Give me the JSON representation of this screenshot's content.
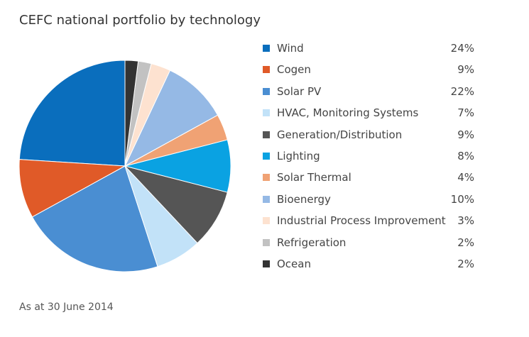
{
  "chart_data": {
    "type": "pie",
    "title": "CEFC national portfolio by technology",
    "footnote": "As at 30 June 2014",
    "legend_placement": "right",
    "start": "top, counterclockwise",
    "slices": [
      {
        "label": "Wind",
        "value": 24,
        "display": "24%",
        "color": "#0a6ebd"
      },
      {
        "label": "Cogen",
        "value": 9,
        "display": "9%",
        "color": "#e05a28"
      },
      {
        "label": "Solar PV",
        "value": 22,
        "display": "22%",
        "color": "#4a8ed2"
      },
      {
        "label": "HVAC, Monitoring Systems",
        "value": 7,
        "display": "7%",
        "color": "#c2e2f8"
      },
      {
        "label": "Generation/Distribution",
        "value": 9,
        "display": "9%",
        "color": "#555555"
      },
      {
        "label": "Lighting",
        "value": 8,
        "display": "8%",
        "color": "#0aa2e2"
      },
      {
        "label": "Solar Thermal",
        "value": 4,
        "display": "4%",
        "color": "#f0a274"
      },
      {
        "label": "Bioenergy",
        "value": 10,
        "display": "10%",
        "color": "#95b9e5"
      },
      {
        "label": "Industrial Process Improvement",
        "value": 3,
        "display": "3%",
        "color": "#fde2d0"
      },
      {
        "label": "Refrigeration",
        "value": 2,
        "display": "2%",
        "color": "#c2c2c2"
      },
      {
        "label": "Ocean",
        "value": 2,
        "display": "2%",
        "color": "#333333"
      }
    ]
  }
}
